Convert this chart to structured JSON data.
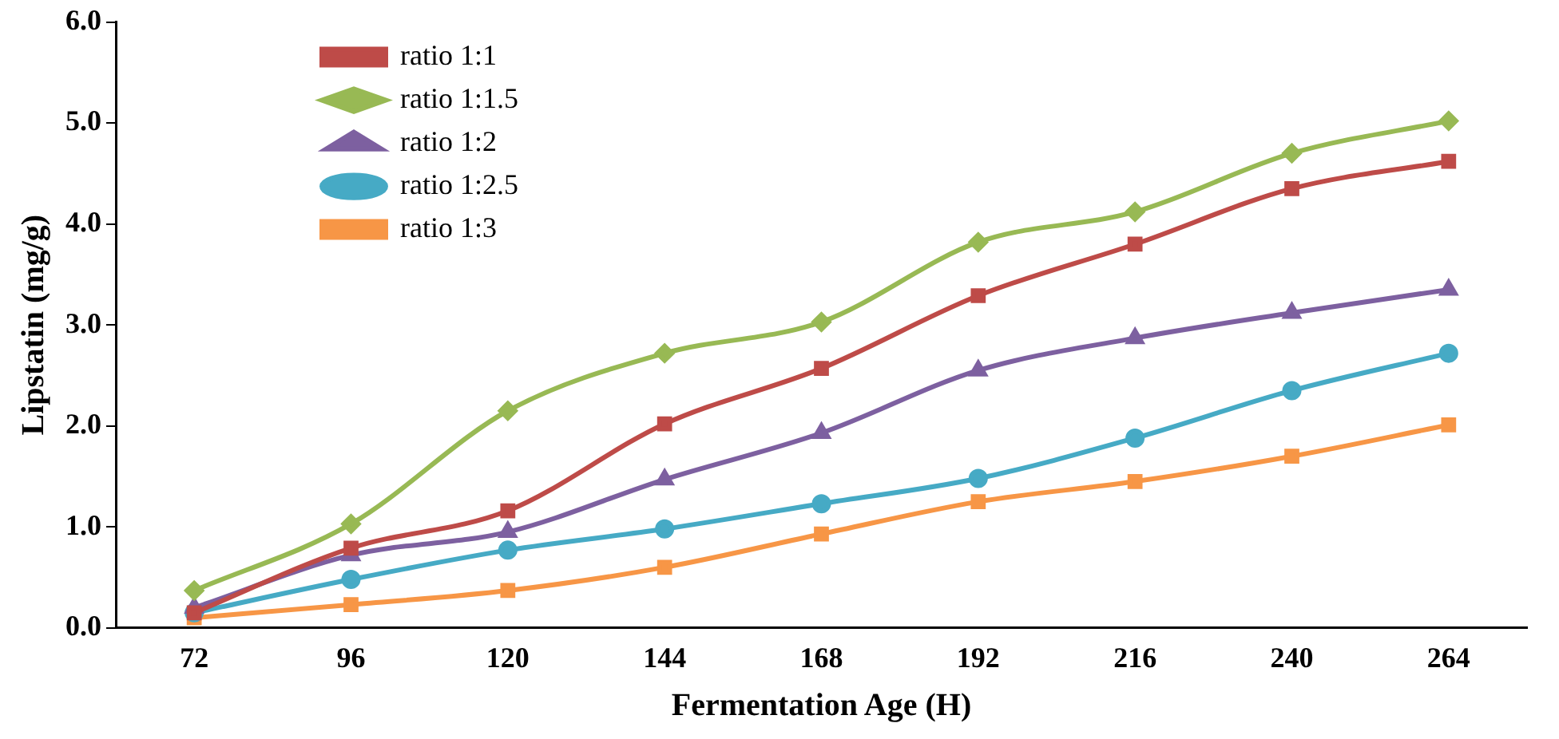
{
  "chart_data": {
    "type": "line",
    "xlabel": "Fermentation Age (H)",
    "ylabel": "Lipstatin (mg/g)",
    "categories": [
      "72",
      "96",
      "120",
      "144",
      "168",
      "192",
      "216",
      "240",
      "264"
    ],
    "ylim": [
      0,
      6
    ],
    "yticks": [
      {
        "value": 0,
        "label": "0.0"
      },
      {
        "value": 1,
        "label": "1.0"
      },
      {
        "value": 2,
        "label": "2.0"
      },
      {
        "value": 3,
        "label": "3.0"
      },
      {
        "value": 4,
        "label": "4.0"
      },
      {
        "value": 5,
        "label": "5.0"
      },
      {
        "value": 6,
        "label": "6.0"
      }
    ],
    "grid": false,
    "legend": "top left",
    "series": [
      {
        "name": "ratio 1:1",
        "color": "#be4b48",
        "marker": "square",
        "values": [
          0.15,
          0.79,
          1.16,
          2.02,
          2.57,
          3.29,
          3.8,
          4.35,
          4.62
        ]
      },
      {
        "name": "ratio 1:1.5",
        "color": "#98b954",
        "marker": "diamond",
        "values": [
          0.37,
          1.03,
          2.15,
          2.72,
          3.03,
          3.82,
          4.12,
          4.7,
          5.02
        ]
      },
      {
        "name": "ratio 1:2",
        "color": "#7d60a0",
        "marker": "triangle",
        "values": [
          0.2,
          0.72,
          0.95,
          1.47,
          1.93,
          2.55,
          2.87,
          3.12,
          3.35
        ]
      },
      {
        "name": "ratio 1:2.5",
        "color": "#46aac5",
        "marker": "circle",
        "values": [
          0.15,
          0.48,
          0.77,
          0.98,
          1.23,
          1.48,
          1.88,
          2.35,
          2.72
        ]
      },
      {
        "name": "ratio 1:3",
        "color": "#f79646",
        "marker": "square",
        "values": [
          0.1,
          0.23,
          0.37,
          0.6,
          0.93,
          1.25,
          1.45,
          1.7,
          2.01
        ]
      }
    ]
  }
}
